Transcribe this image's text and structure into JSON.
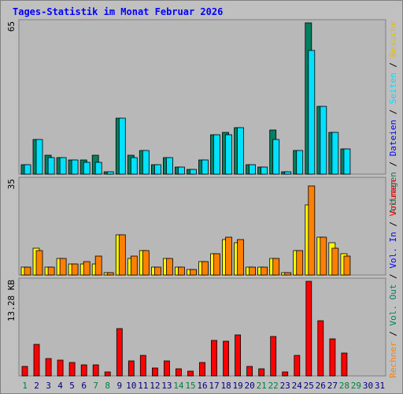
{
  "title": "Tages-Statistik im Monat Februar 2026",
  "colors": {
    "frame_bg": "#c0c0c0",
    "panel_bg": "#b8b8b8",
    "anfragen": "#008060",
    "dateien": "#00e0ff",
    "seiten": "#00e0ff",
    "besuche": "#ffff00",
    "rechner": "#ff8000",
    "volumen": "#ff0000",
    "weekday_text": "#000080",
    "weekend_text": "#008040",
    "label_blue": "#0000ff"
  },
  "chart_data": {
    "type": "bar",
    "title": "Tages-Statistik im Monat Februar 2026",
    "categories": [
      "1",
      "2",
      "3",
      "4",
      "5",
      "6",
      "7",
      "8",
      "9",
      "10",
      "11",
      "12",
      "13",
      "14",
      "15",
      "16",
      "17",
      "18",
      "19",
      "20",
      "21",
      "22",
      "23",
      "24",
      "25",
      "26",
      "27",
      "28",
      "29",
      "30",
      "31"
    ],
    "weekend_days": [
      1,
      7,
      8,
      14,
      15,
      21,
      22,
      28,
      29
    ],
    "panels": [
      {
        "id": "hits",
        "ymax_label": "65",
        "ylim": [
          0,
          65
        ],
        "series": [
          {
            "name": "Anfragen",
            "color": "#008060",
            "values": [
              4,
              15,
              8,
              7,
              6,
              6,
              8,
              1,
              24,
              8,
              10,
              4,
              7,
              3,
              2,
              6,
              17,
              18,
              20,
              4,
              3,
              19,
              1,
              10,
              65,
              29,
              18,
              11,
              0,
              0,
              0
            ]
          },
          {
            "name": "Dateien",
            "color": "#00e0ff",
            "values": [
              4,
              15,
              7,
              7,
              6,
              5,
              5,
              1,
              24,
              7,
              10,
              4,
              7,
              3,
              2,
              6,
              17,
              17,
              20,
              4,
              3,
              15,
              1,
              10,
              53,
              29,
              18,
              11,
              0,
              0,
              0
            ]
          }
        ]
      },
      {
        "id": "visits",
        "ymax_label": "35",
        "ylim": [
          0,
          35
        ],
        "series": [
          {
            "name": "Besuche",
            "color": "#ffff00",
            "values": [
              3,
              10,
              3,
              6,
              4,
              4,
              4,
              1,
              15,
              6,
              9,
              3,
              6,
              3,
              2,
              5,
              8,
              13,
              12,
              3,
              3,
              6,
              1,
              9,
              26,
              14,
              12,
              8,
              0,
              0,
              0
            ]
          },
          {
            "name": "Rechner",
            "color": "#ff8000",
            "values": [
              3,
              9,
              3,
              6,
              4,
              5,
              7,
              1,
              15,
              7,
              9,
              3,
              6,
              3,
              2,
              5,
              8,
              14,
              13,
              3,
              3,
              6,
              1,
              9,
              33,
              14,
              10,
              7,
              0,
              0,
              0
            ]
          }
        ]
      },
      {
        "id": "volume",
        "ymax_label": "13.28 KB",
        "ylim": [
          0,
          13.28
        ],
        "series": [
          {
            "name": "Volumen",
            "color": "#ff0000",
            "values": [
              1.3,
              4.4,
              2.4,
              2.2,
              1.9,
              1.6,
              1.6,
              0.5,
              6.6,
              2.1,
              2.9,
              1.1,
              2.1,
              1.0,
              0.7,
              1.9,
              5.0,
              4.9,
              5.7,
              1.3,
              1.0,
              5.5,
              0.5,
              2.9,
              13.28,
              7.8,
              5.2,
              3.2,
              0,
              0,
              0
            ]
          }
        ]
      }
    ]
  },
  "legend": {
    "top": [
      {
        "text": "Anfragen",
        "color": "#008060"
      },
      {
        "text": " / ",
        "color": "#000000"
      },
      {
        "text": "Dateien",
        "color": "#0000ff"
      },
      {
        "text": " / ",
        "color": "#000000"
      },
      {
        "text": "Seiten",
        "color": "#00e0ff"
      },
      {
        "text": " / ",
        "color": "#000000"
      },
      {
        "text": "Besuche",
        "color": "#e0c000"
      }
    ],
    "bottom": [
      {
        "text": "Rechner",
        "color": "#ff8000"
      },
      {
        "text": " / ",
        "color": "#000000"
      },
      {
        "text": "Vol. Out",
        "color": "#008060"
      },
      {
        "text": " / ",
        "color": "#000000"
      },
      {
        "text": "Vol. In",
        "color": "#0000ff"
      },
      {
        "text": " / ",
        "color": "#000000"
      },
      {
        "text": "Volumen",
        "color": "#ff0000"
      }
    ]
  }
}
